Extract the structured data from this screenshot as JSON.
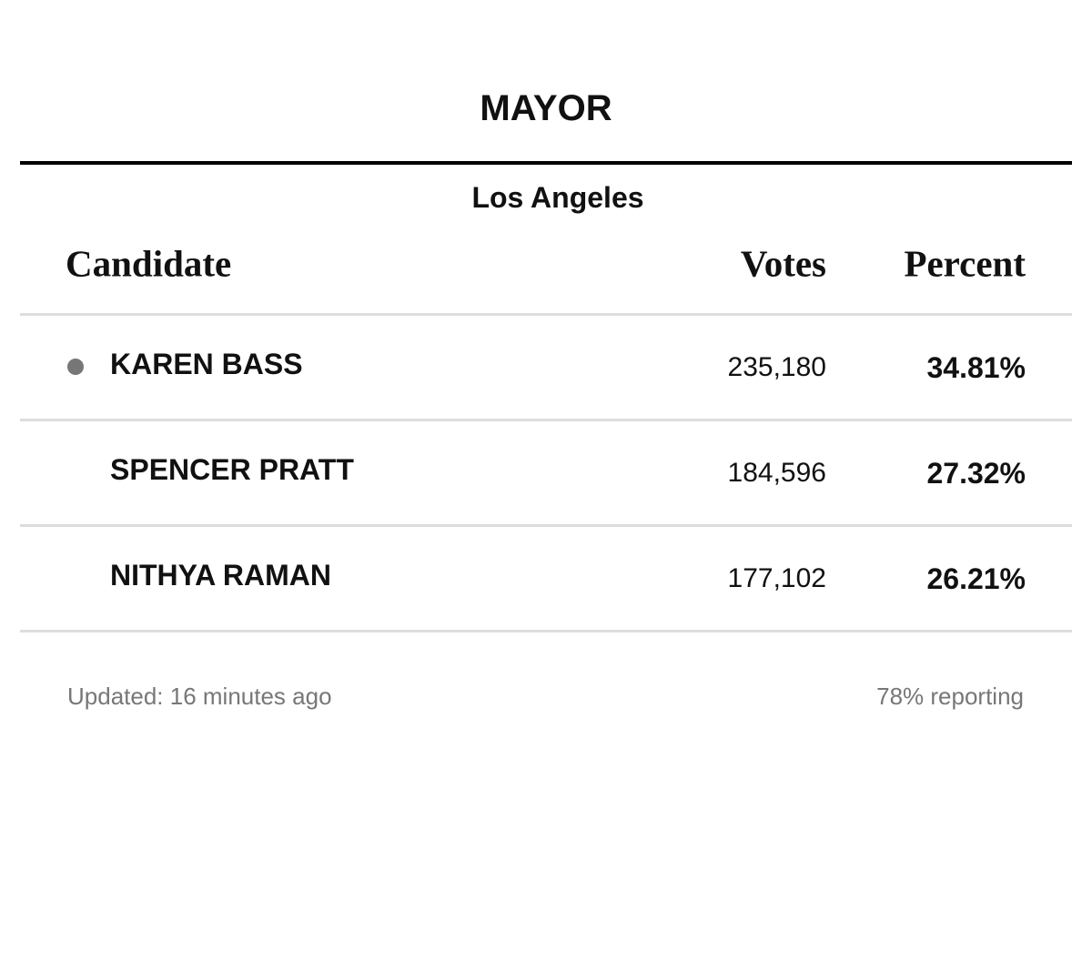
{
  "header": {
    "title": "MAYOR",
    "region": "Los Angeles"
  },
  "table": {
    "columns": [
      "Candidate",
      "Votes",
      "Percent"
    ],
    "rows": [
      [
        "KAREN BASS",
        "235,180",
        "34.81%"
      ],
      [
        "SPENCER PRATT",
        "184,596",
        "27.32%"
      ],
      [
        "NITHYA RAMAN",
        "177,102",
        "26.21%"
      ]
    ]
  },
  "footer": {
    "updated": "Updated: 16 minutes ago",
    "reporting": "78% reporting"
  }
}
